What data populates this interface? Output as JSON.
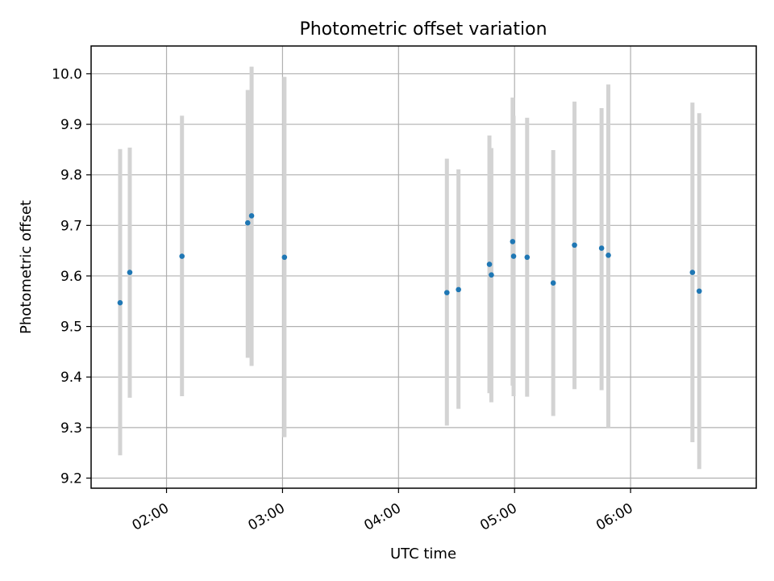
{
  "chart_data": {
    "type": "scatter",
    "title": "Photometric offset variation",
    "xlabel": "UTC time",
    "ylabel": "Photometric offset",
    "grid": true,
    "xlim_minutes": [
      81,
      425
    ],
    "ylim": [
      9.18,
      10.055
    ],
    "x_ticks": [
      {
        "minutes": 120,
        "label": "02:00"
      },
      {
        "minutes": 180,
        "label": "03:00"
      },
      {
        "minutes": 240,
        "label": "04:00"
      },
      {
        "minutes": 300,
        "label": "05:00"
      },
      {
        "minutes": 360,
        "label": "06:00"
      }
    ],
    "y_ticks": [
      {
        "value": 9.2,
        "label": "9.2"
      },
      {
        "value": 9.3,
        "label": "9.3"
      },
      {
        "value": 9.4,
        "label": "9.4"
      },
      {
        "value": 9.5,
        "label": "9.5"
      },
      {
        "value": 9.6,
        "label": "9.6"
      },
      {
        "value": 9.7,
        "label": "9.7"
      },
      {
        "value": 9.8,
        "label": "9.8"
      },
      {
        "value": 9.9,
        "label": "9.9"
      },
      {
        "value": 10.0,
        "label": "10.0"
      }
    ],
    "series": [
      {
        "name": "offset",
        "marker_color": "#1f77b4",
        "errorbar_color": "#d3d3d3",
        "points": [
          {
            "t": 96.0,
            "y": 9.547,
            "ylo": 9.245,
            "yhi": 9.851
          },
          {
            "t": 101.0,
            "y": 9.607,
            "ylo": 9.359,
            "yhi": 9.854
          },
          {
            "t": 128.0,
            "y": 9.639,
            "ylo": 9.362,
            "yhi": 9.917
          },
          {
            "t": 162.0,
            "y": 9.705,
            "ylo": 9.438,
            "yhi": 9.968
          },
          {
            "t": 164.0,
            "y": 9.719,
            "ylo": 9.422,
            "yhi": 10.014
          },
          {
            "t": 181.0,
            "y": 9.637,
            "ylo": 9.281,
            "yhi": 9.994
          },
          {
            "t": 265.0,
            "y": 9.567,
            "ylo": 9.304,
            "yhi": 9.832
          },
          {
            "t": 271.0,
            "y": 9.573,
            "ylo": 9.337,
            "yhi": 9.811
          },
          {
            "t": 287.0,
            "y": 9.623,
            "ylo": 9.368,
            "yhi": 9.878
          },
          {
            "t": 288.0,
            "y": 9.602,
            "ylo": 9.35,
            "yhi": 9.853
          },
          {
            "t": 299.0,
            "y": 9.668,
            "ylo": 9.383,
            "yhi": 9.953
          },
          {
            "t": 299.5,
            "y": 9.639,
            "ylo": 9.362,
            "yhi": 9.917
          },
          {
            "t": 306.5,
            "y": 9.637,
            "ylo": 9.361,
            "yhi": 9.913
          },
          {
            "t": 320.0,
            "y": 9.586,
            "ylo": 9.323,
            "yhi": 9.849
          },
          {
            "t": 331.0,
            "y": 9.661,
            "ylo": 9.376,
            "yhi": 9.945
          },
          {
            "t": 345.0,
            "y": 9.655,
            "ylo": 9.374,
            "yhi": 9.932
          },
          {
            "t": 348.5,
            "y": 9.641,
            "ylo": 9.3,
            "yhi": 9.979
          },
          {
            "t": 392.0,
            "y": 9.607,
            "ylo": 9.271,
            "yhi": 9.943
          },
          {
            "t": 395.5,
            "y": 9.57,
            "ylo": 9.218,
            "yhi": 9.922
          }
        ]
      }
    ]
  }
}
